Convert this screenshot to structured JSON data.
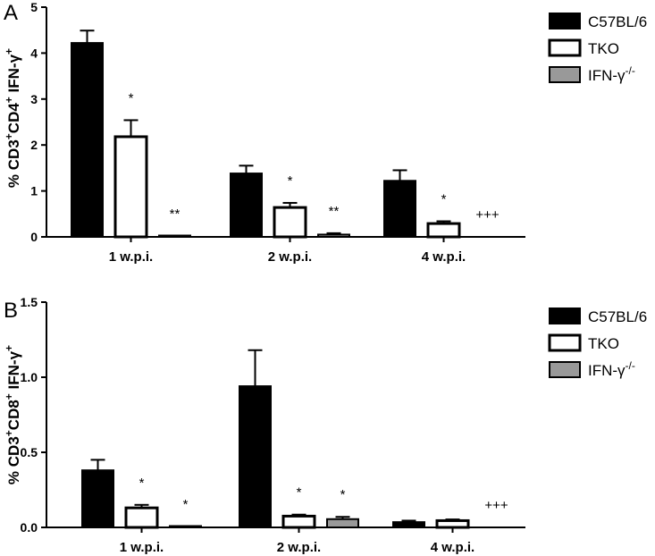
{
  "chart_data": [
    {
      "type": "bar",
      "panel": "A",
      "ylabel": "% CD3+CD4+ IFN-γ+",
      "ylim": [
        0,
        5
      ],
      "yticks": [
        0,
        1,
        2,
        3,
        4,
        5
      ],
      "categories": [
        "1 w.p.i.",
        "2 w.p.i.",
        "4 w.p.i."
      ],
      "series": [
        {
          "name": "C57BL/6",
          "values": [
            4.22,
            1.38,
            1.22
          ],
          "errors": [
            0.27,
            0.17,
            0.23
          ],
          "color": "#000000"
        },
        {
          "name": "TKO",
          "values": [
            2.18,
            0.64,
            0.29
          ],
          "errors": [
            0.36,
            0.1,
            0.05
          ],
          "color": "#ffffff"
        },
        {
          "name": "IFN-γ-/-",
          "values": [
            0.02,
            0.05,
            null
          ],
          "errors": [
            0.0,
            0.03,
            null
          ],
          "color": "#999999"
        }
      ],
      "annotations": [
        {
          "category": 0,
          "series": 1,
          "text": "*"
        },
        {
          "category": 0,
          "series": 2,
          "text": "**"
        },
        {
          "category": 1,
          "series": 1,
          "text": "*"
        },
        {
          "category": 1,
          "series": 2,
          "text": "**"
        },
        {
          "category": 2,
          "series": 1,
          "text": "*"
        },
        {
          "category": 2,
          "series": 2,
          "text": "+++"
        }
      ],
      "legend": [
        "C57BL/6",
        "TKO",
        "IFN-γ-/-"
      ],
      "legend_position": "top-right"
    },
    {
      "type": "bar",
      "panel": "B",
      "ylabel": "% CD3+CD8+ IFN-γ+",
      "ylim": [
        0,
        1.5
      ],
      "yticks": [
        0.0,
        0.5,
        1.0,
        1.5
      ],
      "ytick_labels": [
        "0.0",
        "0.5",
        "1.0",
        "1.5"
      ],
      "categories": [
        "1 w.p.i.",
        "2 w.p.i.",
        "4 w.p.i."
      ],
      "series": [
        {
          "name": "C57BL/6",
          "values": [
            0.38,
            0.94,
            0.035
          ],
          "errors": [
            0.07,
            0.24,
            0.01
          ],
          "color": "#000000"
        },
        {
          "name": "TKO",
          "values": [
            0.13,
            0.075,
            0.045
          ],
          "errors": [
            0.02,
            0.01,
            0.008
          ],
          "color": "#ffffff"
        },
        {
          "name": "IFN-γ-/-",
          "values": [
            0.005,
            0.055,
            null
          ],
          "errors": [
            0.0,
            0.015,
            null
          ],
          "color": "#999999"
        }
      ],
      "annotations": [
        {
          "category": 0,
          "series": 1,
          "text": "*"
        },
        {
          "category": 0,
          "series": 2,
          "text": "*"
        },
        {
          "category": 1,
          "series": 1,
          "text": "*"
        },
        {
          "category": 1,
          "series": 2,
          "text": "*"
        },
        {
          "category": 2,
          "series": 2,
          "text": "+++"
        }
      ],
      "legend": [
        "C57BL/6",
        "TKO",
        "IFN-γ-/-"
      ],
      "legend_position": "top-right"
    }
  ]
}
